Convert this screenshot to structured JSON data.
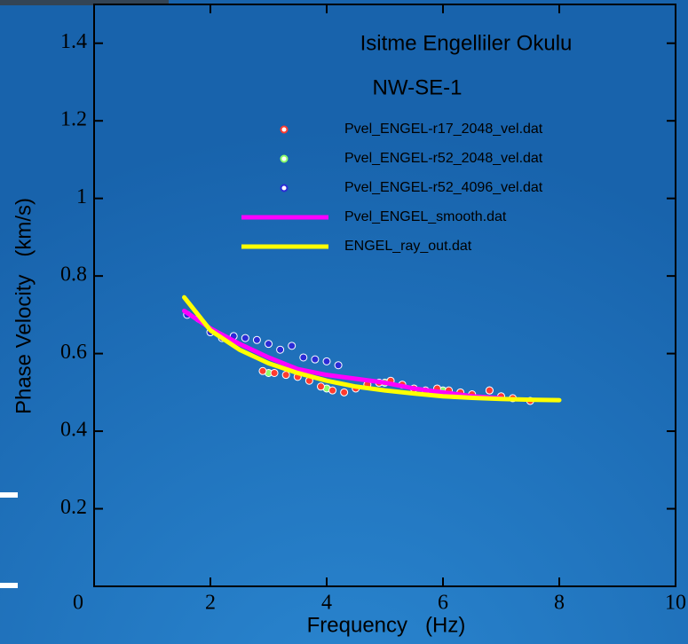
{
  "chart_data": {
    "type": "scatter",
    "title": "Isitme Engelliler Okulu",
    "subtitle": "NW-SE-1",
    "x_label": "Frequency   (Hz)",
    "y_label": "Phase Velocity   (km/s)",
    "xlim": [
      0,
      10
    ],
    "xticks": [
      0,
      2,
      4,
      6,
      8,
      10
    ],
    "ylim": [
      0,
      1.5
    ],
    "yticks": [
      0.2,
      0.4,
      0.6,
      0.8,
      1,
      1.2,
      1.4
    ],
    "series": [
      {
        "name": "Pvel_ENGEL-r17_2048_vel.dat",
        "color": "#ff3b2f",
        "mode": "markers",
        "x": [
          2.9,
          3.1,
          3.3,
          3.5,
          3.7,
          3.9,
          4.1,
          4.3,
          4.5,
          4.7,
          4.9,
          5.1,
          5.3,
          5.5,
          5.7,
          5.9,
          6.1,
          6.3,
          6.5,
          6.8,
          7.0,
          7.2,
          7.5
        ],
        "values": [
          0.555,
          0.55,
          0.545,
          0.54,
          0.53,
          0.515,
          0.505,
          0.5,
          0.51,
          0.52,
          0.525,
          0.53,
          0.52,
          0.51,
          0.505,
          0.51,
          0.505,
          0.5,
          0.495,
          0.505,
          0.49,
          0.485,
          0.478
        ]
      },
      {
        "name": "Pvel_ENGEL-r52_2048_vel.dat",
        "color": "#8cff6a",
        "mode": "markers",
        "x": [
          3.0,
          4.0,
          5.0,
          6.0,
          6.8
        ],
        "values": [
          0.55,
          0.51,
          0.525,
          0.505,
          0.505
        ]
      },
      {
        "name": "Pvel_ENGEL-r52_4096_vel.dat",
        "color": "#2b2bd6",
        "mode": "markers",
        "x": [
          1.6,
          1.8,
          2.0,
          2.2,
          2.4,
          2.6,
          2.8,
          3.0,
          3.2,
          3.4,
          3.6,
          3.8,
          4.0,
          4.2
        ],
        "values": [
          0.7,
          0.69,
          0.655,
          0.64,
          0.645,
          0.64,
          0.635,
          0.625,
          0.61,
          0.62,
          0.59,
          0.585,
          0.58,
          0.57
        ]
      },
      {
        "name": "Pvel_ENGEL_smooth.dat",
        "color": "#ff00ff",
        "mode": "line",
        "x": [
          1.55,
          2,
          2.5,
          3,
          3.5,
          4,
          4.5,
          5,
          5.5,
          6,
          6.5,
          7
        ],
        "values": [
          0.71,
          0.665,
          0.625,
          0.59,
          0.56,
          0.545,
          0.535,
          0.525,
          0.51,
          0.5,
          0.49,
          0.485
        ]
      },
      {
        "name": "ENGEL_ray_out.dat",
        "color": "#ffff00",
        "mode": "line",
        "x": [
          1.55,
          2,
          2.5,
          3,
          3.5,
          4,
          4.5,
          5,
          5.5,
          6,
          6.5,
          7,
          7.5,
          8
        ],
        "values": [
          0.745,
          0.66,
          0.61,
          0.575,
          0.55,
          0.53,
          0.515,
          0.505,
          0.497,
          0.49,
          0.486,
          0.483,
          0.481,
          0.48
        ]
      }
    ]
  }
}
